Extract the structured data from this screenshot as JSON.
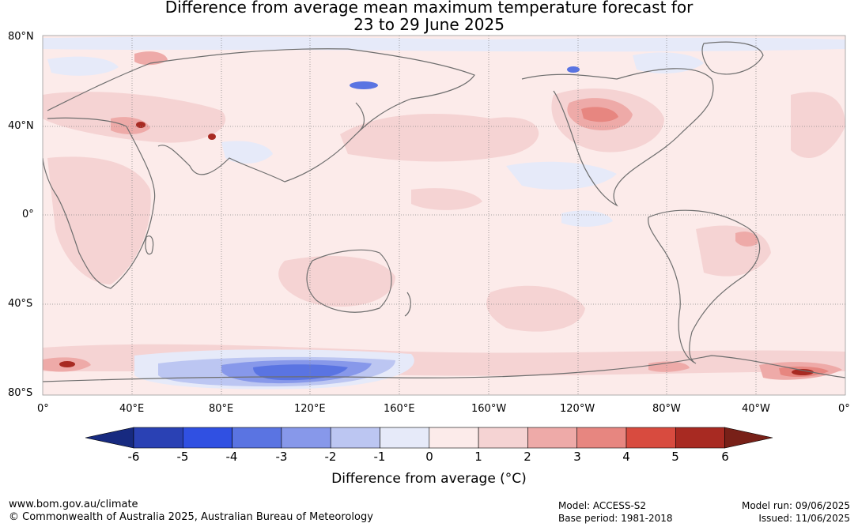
{
  "title": {
    "line1": "Difference from average mean maximum temperature forecast for",
    "line2": "23 to 29 June 2025"
  },
  "map": {
    "type": "global-anomaly-map",
    "projection": "equirectangular",
    "center_longitude": 180,
    "lat_labels": [
      "80°N",
      "40°N",
      "0°",
      "40°S",
      "80°S"
    ],
    "lon_labels": [
      "0°",
      "40°E",
      "80°E",
      "120°E",
      "160°E",
      "160°W",
      "120°W",
      "80°W",
      "40°W",
      "0°"
    ],
    "base_color": "#fcebea",
    "coast_color": "#6e6e6e",
    "grid": true
  },
  "colorbar": {
    "ticks": [
      "-6",
      "-5",
      "-4",
      "-3",
      "-2",
      "-1",
      "0",
      "1",
      "2",
      "3",
      "4",
      "5",
      "6"
    ],
    "colors": [
      "#172a80",
      "#2a41b4",
      "#3050e2",
      "#5a74e2",
      "#8798ea",
      "#bcc6f2",
      "#e6eaf9",
      "#fcebea",
      "#f5d3d3",
      "#eeaaa8",
      "#e78680",
      "#d84b3f",
      "#a82a22",
      "#782018"
    ],
    "title": "Difference from average (°C)"
  },
  "footer": {
    "website": "www.bom.gov.au/climate",
    "copyright": "© Commonwealth of Australia 2025, Australian Bureau of Meteorology",
    "model": "Model: ACCESS-S2",
    "base_period": "Base period: 1981-2018",
    "model_run": "Model run: 09/06/2025",
    "issued": "Issued: 11/06/2025"
  }
}
